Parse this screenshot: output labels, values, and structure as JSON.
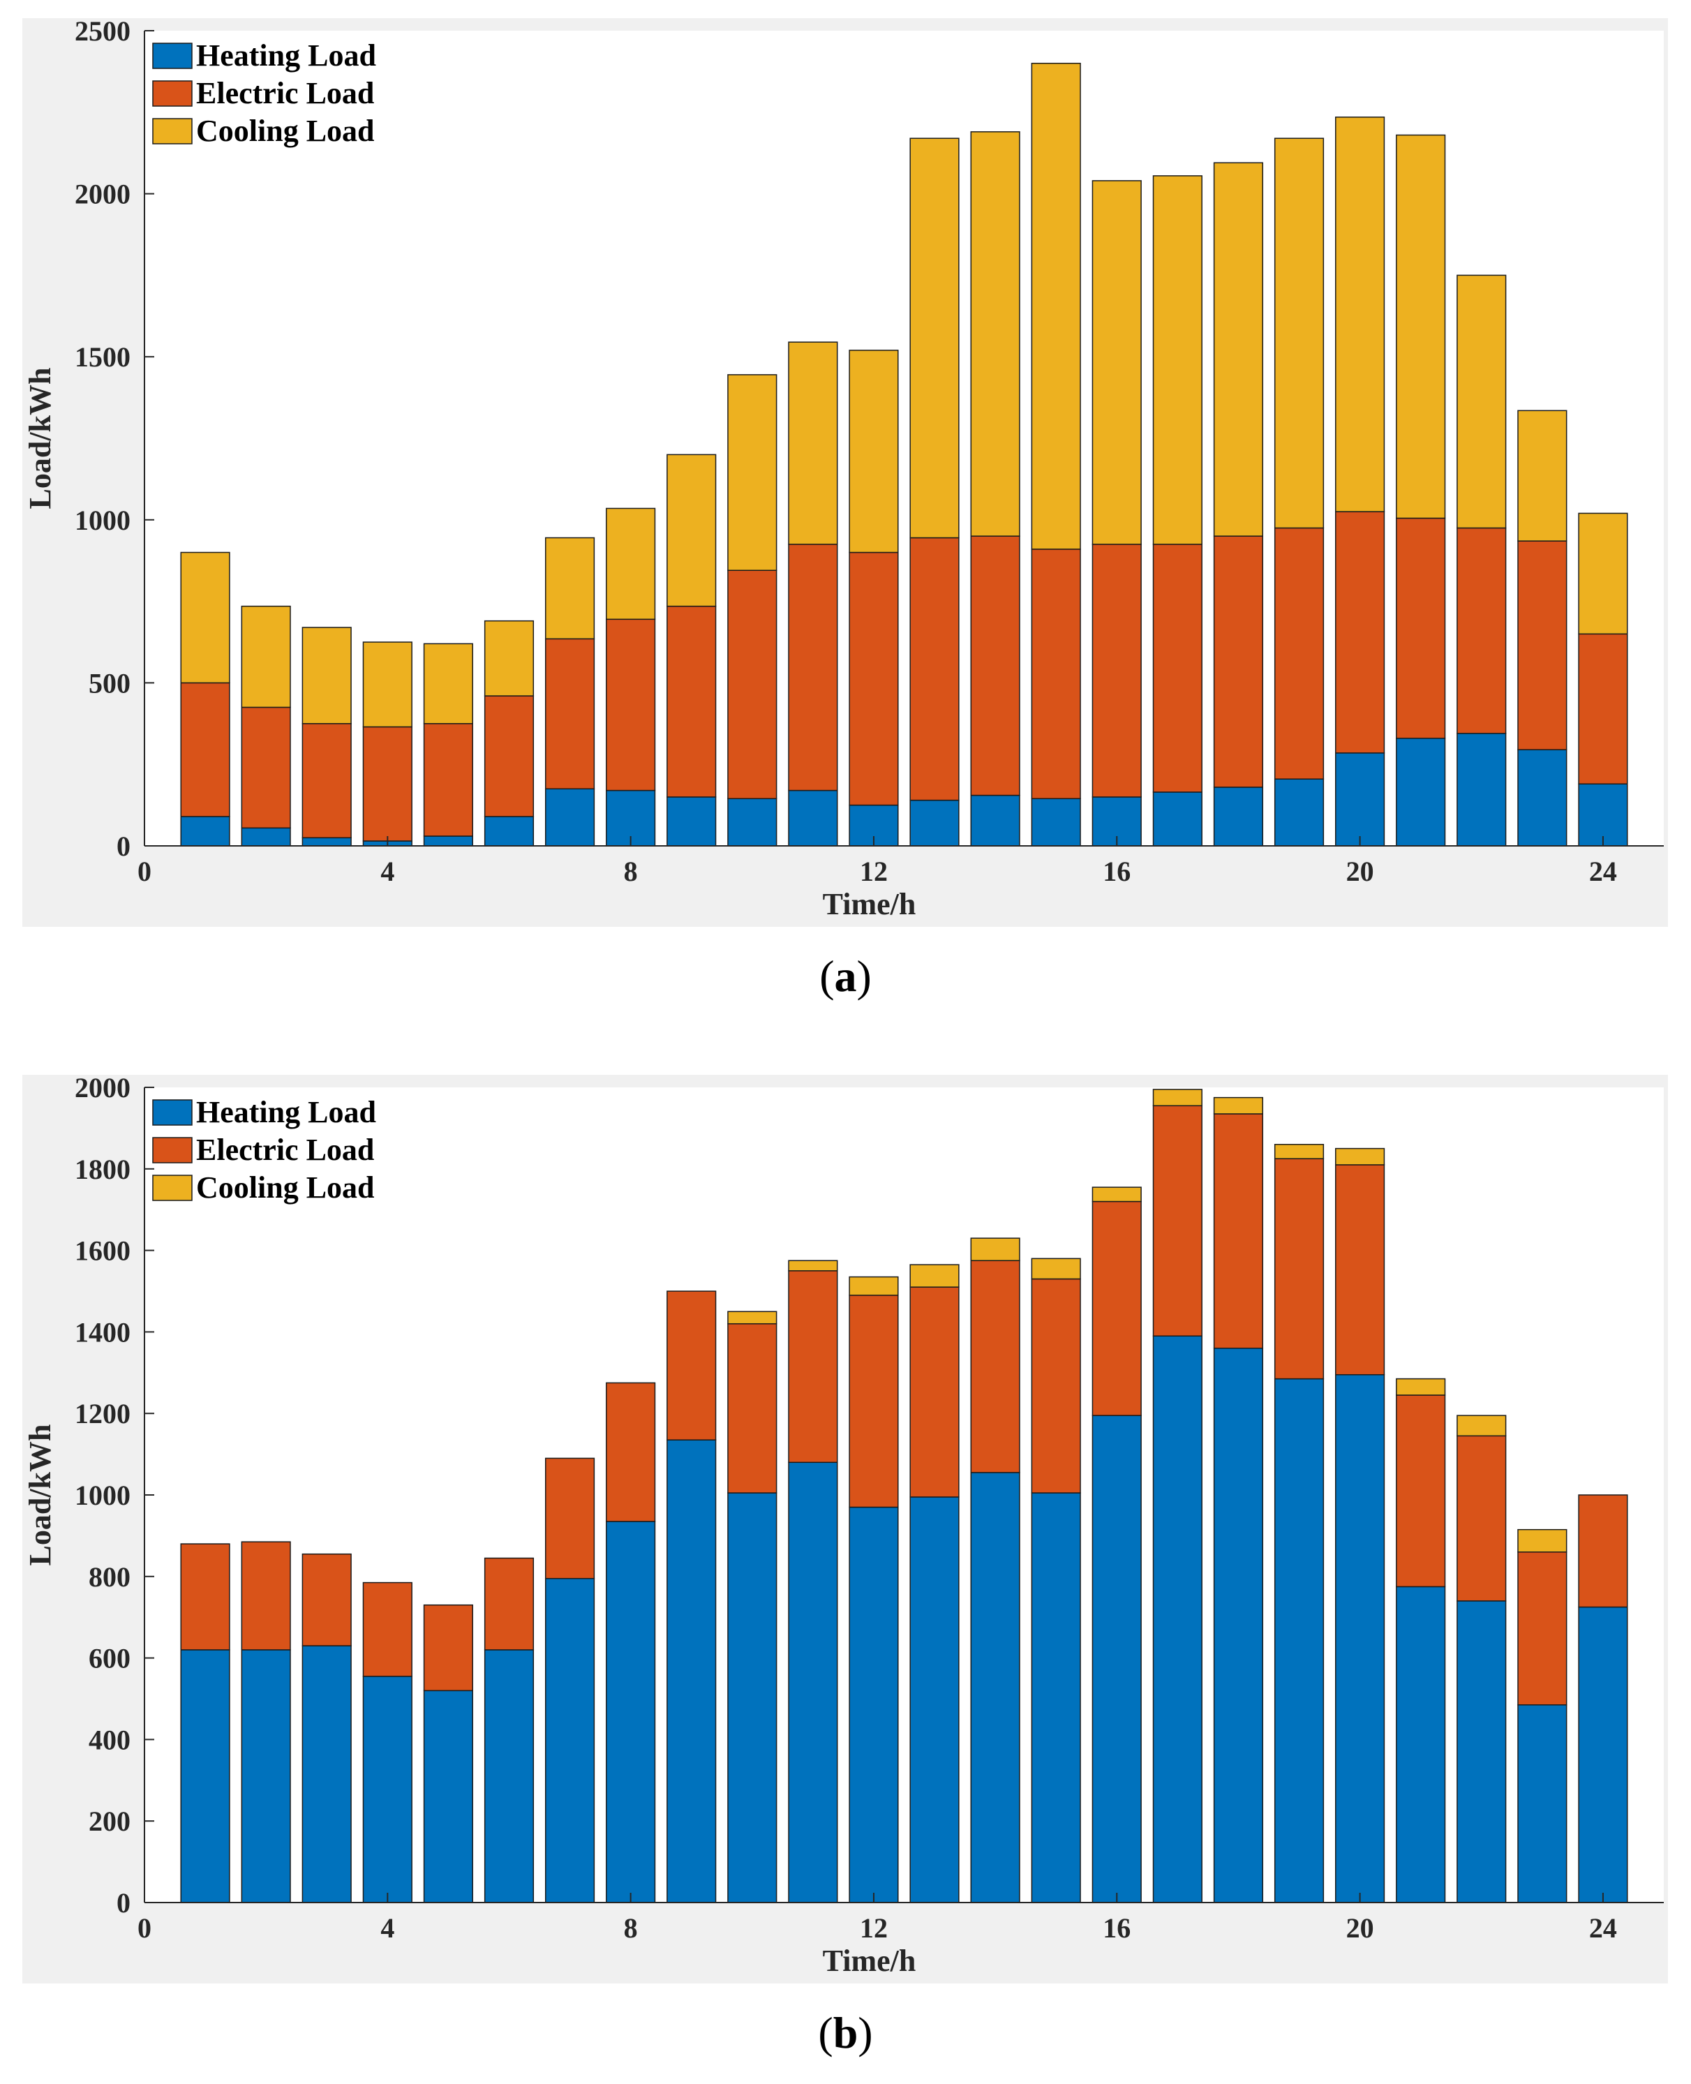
{
  "chart_data": [
    {
      "type": "bar",
      "stacked": true,
      "panel_label": "a",
      "xlabel": "Time/h",
      "ylabel": "Load/kWh",
      "xlim": [
        0,
        25
      ],
      "ylim": [
        0,
        2500
      ],
      "xticks": [
        0,
        4,
        8,
        12,
        16,
        20,
        24
      ],
      "yticks": [
        0,
        500,
        1000,
        1500,
        2000,
        2500
      ],
      "legend_position": "top-left",
      "x": [
        1,
        2,
        3,
        4,
        5,
        6,
        7,
        8,
        9,
        10,
        11,
        12,
        13,
        14,
        15,
        16,
        17,
        18,
        19,
        20,
        21,
        22,
        23,
        24
      ],
      "series": [
        {
          "name": "Heating Load",
          "color": "#0072BD",
          "values": [
            90,
            55,
            25,
            15,
            30,
            90,
            175,
            170,
            150,
            145,
            170,
            125,
            140,
            155,
            145,
            150,
            165,
            180,
            205,
            285,
            330,
            345,
            295,
            190
          ]
        },
        {
          "name": "Electric Load",
          "color": "#D95319",
          "values": [
            410,
            370,
            350,
            350,
            345,
            370,
            460,
            525,
            585,
            700,
            755,
            775,
            805,
            795,
            765,
            775,
            760,
            770,
            770,
            740,
            675,
            630,
            640,
            460
          ]
        },
        {
          "name": "Cooling Load",
          "color": "#EDB120",
          "values": [
            400,
            310,
            295,
            260,
            245,
            230,
            310,
            340,
            465,
            600,
            620,
            620,
            1225,
            1240,
            1490,
            1115,
            1130,
            1145,
            1195,
            1210,
            1175,
            775,
            400,
            370
          ]
        }
      ]
    },
    {
      "type": "bar",
      "stacked": true,
      "panel_label": "b",
      "xlabel": "Time/h",
      "ylabel": "Load/kWh",
      "xlim": [
        0,
        25
      ],
      "ylim": [
        0,
        2000
      ],
      "xticks": [
        0,
        4,
        8,
        12,
        16,
        20,
        24
      ],
      "yticks": [
        0,
        200,
        400,
        600,
        800,
        1000,
        1200,
        1400,
        1600,
        1800,
        2000
      ],
      "legend_position": "top-left",
      "x": [
        1,
        2,
        3,
        4,
        5,
        6,
        7,
        8,
        9,
        10,
        11,
        12,
        13,
        14,
        15,
        16,
        17,
        18,
        19,
        20,
        21,
        22,
        23,
        24
      ],
      "series": [
        {
          "name": "Heating Load",
          "color": "#0072BD",
          "values": [
            620,
            620,
            630,
            555,
            520,
            620,
            795,
            935,
            1135,
            1005,
            1080,
            970,
            995,
            1055,
            1005,
            1195,
            1390,
            1360,
            1285,
            1295,
            775,
            740,
            485,
            725
          ]
        },
        {
          "name": "Electric Load",
          "color": "#D95319",
          "values": [
            260,
            265,
            225,
            230,
            210,
            225,
            295,
            340,
            365,
            415,
            470,
            520,
            515,
            520,
            525,
            525,
            565,
            575,
            540,
            515,
            470,
            405,
            375,
            275
          ]
        },
        {
          "name": "Cooling Load",
          "color": "#EDB120",
          "values": [
            0,
            0,
            0,
            0,
            0,
            0,
            0,
            0,
            0,
            30,
            25,
            45,
            55,
            55,
            50,
            35,
            40,
            40,
            35,
            40,
            40,
            50,
            55,
            0
          ]
        }
      ]
    }
  ]
}
